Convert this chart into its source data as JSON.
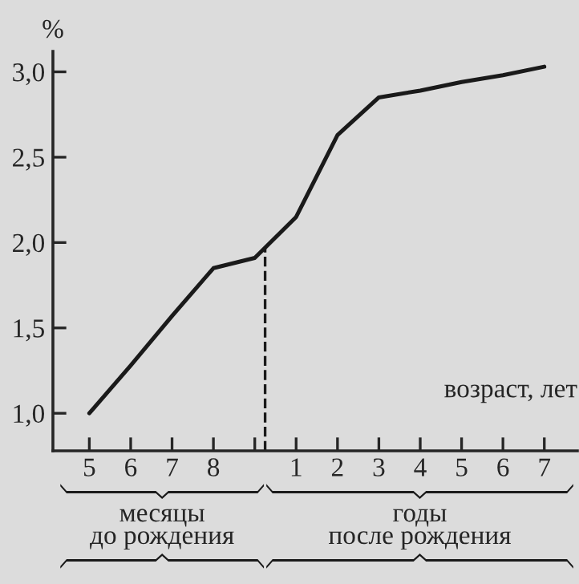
{
  "chart_data": {
    "type": "line",
    "categories": [
      "5",
      "6",
      "7",
      "8",
      null,
      "1",
      "2",
      "3",
      "4",
      "5",
      "6",
      "7"
    ],
    "values": [
      1.0,
      1.28,
      1.57,
      1.85,
      1.91,
      2.15,
      2.63,
      2.85,
      2.89,
      2.94,
      2.98,
      3.03
    ],
    "color": "#1a1a1a",
    "ylim": [
      0.78,
      3.12
    ],
    "yticks": [
      {
        "value": 1.0,
        "label": "1,0"
      },
      {
        "value": 1.5,
        "label": "1,5"
      },
      {
        "value": 2.0,
        "label": "2,0"
      },
      {
        "value": 2.5,
        "label": "2,5"
      },
      {
        "value": 3.0,
        "label": "3,0"
      }
    ],
    "ylabel": "%",
    "xlabel": "возраст, лет",
    "annotations": [
      "месяцы\nдо рождения",
      "годы\nпосле рождения"
    ],
    "grid": false,
    "legend": false,
    "marker": "none",
    "line_style": "solid"
  }
}
